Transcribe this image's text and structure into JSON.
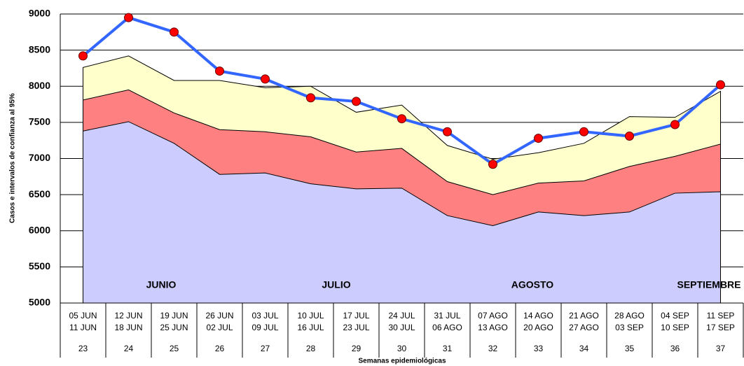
{
  "chart_data": {
    "type": "area",
    "y_label": "Casos e intervalos de confianza al 95%",
    "x_label": "Semanas epidemiológicas",
    "categories": [
      "23",
      "24",
      "25",
      "26",
      "27",
      "28",
      "29",
      "30",
      "31",
      "32",
      "33",
      "34",
      "35",
      "36",
      "37"
    ],
    "date_ranges": [
      [
        "05 JUN",
        "11 JUN"
      ],
      [
        "12 JUN",
        "18 JUN"
      ],
      [
        "19 JUN",
        "25 JUN"
      ],
      [
        "26 JUN",
        "02 JUL"
      ],
      [
        "03 JUL",
        "09 JUL"
      ],
      [
        "10 JUL",
        "16 JUL"
      ],
      [
        "17 JUL",
        "23 JUL"
      ],
      [
        "24 JUL",
        "30 JUL"
      ],
      [
        "31 JUL",
        "06 AGO"
      ],
      [
        "07 AGO",
        "13 AGO"
      ],
      [
        "14 AGO",
        "20 AGO"
      ],
      [
        "21 AGO",
        "27 AGO"
      ],
      [
        "28 AGO",
        "03 SEP"
      ],
      [
        "04 SEP",
        "10 SEP"
      ],
      [
        "11 SEP",
        "17 SEP"
      ]
    ],
    "months": [
      "JUNIO",
      "JULIO",
      "AGOSTO",
      "SEPTIEMBRE"
    ],
    "ylim": [
      5000,
      9000
    ],
    "yticks": [
      5000,
      5500,
      6000,
      6500,
      7000,
      7500,
      8000,
      8500,
      9000
    ],
    "grid": true,
    "areas": [
      {
        "color": "#ffffcc",
        "values": [
          8260,
          8420,
          8080,
          8080,
          7980,
          8000,
          7640,
          7740,
          7180,
          6990,
          7080,
          7210,
          7580,
          7570,
          7930
        ]
      },
      {
        "color": "#ff8080",
        "values": [
          7810,
          7950,
          7630,
          7400,
          7370,
          7300,
          7090,
          7140,
          6680,
          6500,
          6660,
          6690,
          6890,
          7030,
          7200
        ]
      },
      {
        "color": "#ccccff",
        "values": [
          7380,
          7510,
          7210,
          6780,
          6800,
          6650,
          6580,
          6590,
          6210,
          6070,
          6260,
          6210,
          6260,
          6520,
          6540
        ]
      }
    ],
    "line": {
      "color": "#3366ff",
      "marker_color": "#ff0000",
      "values": [
        8420,
        8950,
        8750,
        8210,
        8100,
        7840,
        7790,
        7550,
        7370,
        6920,
        7280,
        7370,
        7310,
        7470,
        8020
      ]
    }
  }
}
